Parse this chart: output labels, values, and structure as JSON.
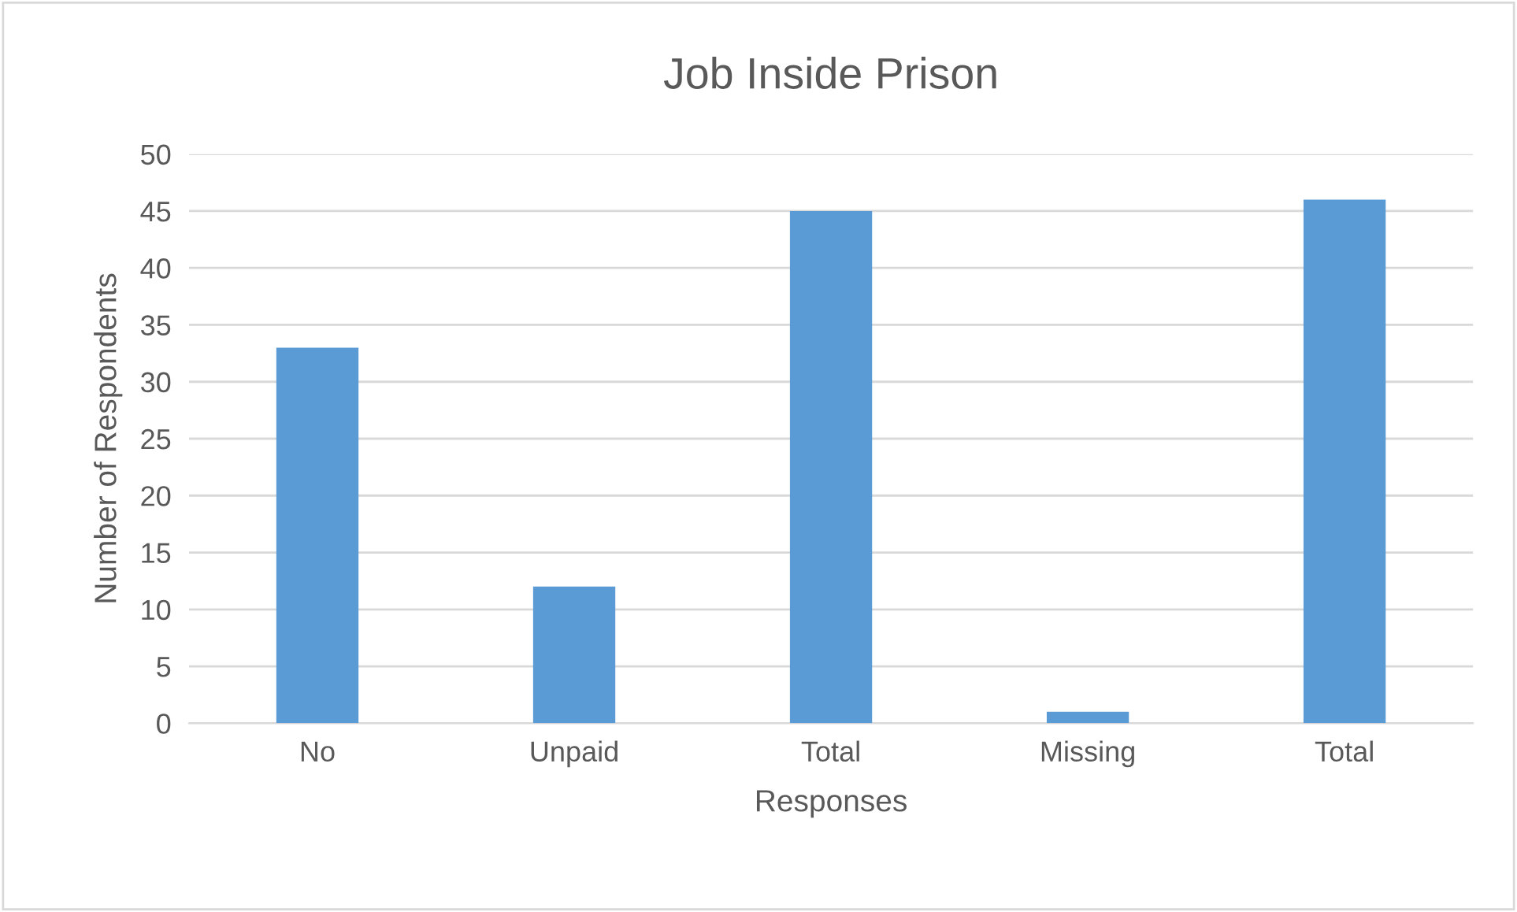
{
  "chart_data": {
    "type": "bar",
    "title": "Job Inside Prison",
    "xlabel": "Responses",
    "ylabel": "Number of Respondents",
    "categories": [
      "No",
      "Unpaid",
      "Total",
      "Missing",
      "Total"
    ],
    "values": [
      33,
      12,
      45,
      1,
      46
    ],
    "color": "#5b9bd5",
    "ylim": [
      0,
      50
    ],
    "yticks": [
      0,
      5,
      10,
      15,
      20,
      25,
      30,
      35,
      40,
      45,
      50
    ],
    "grid": "y",
    "legend": false
  }
}
